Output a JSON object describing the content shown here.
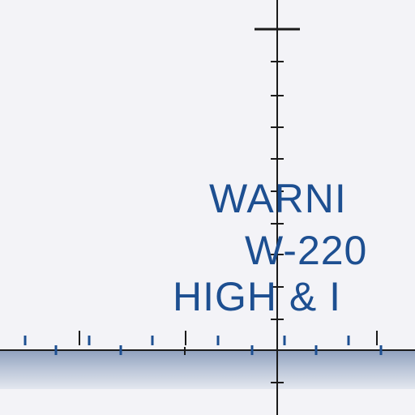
{
  "warning": {
    "line1": "WARNI",
    "line2": "W-220",
    "line3": "HIGH & I"
  },
  "colors": {
    "background": "#f3f3f7",
    "text": "#1d4f91",
    "axis": "#1a1a1a",
    "tick_blue": "#1d4f91",
    "band_top": "#8fa0bd",
    "band_bottom": "#e3e7ef"
  }
}
